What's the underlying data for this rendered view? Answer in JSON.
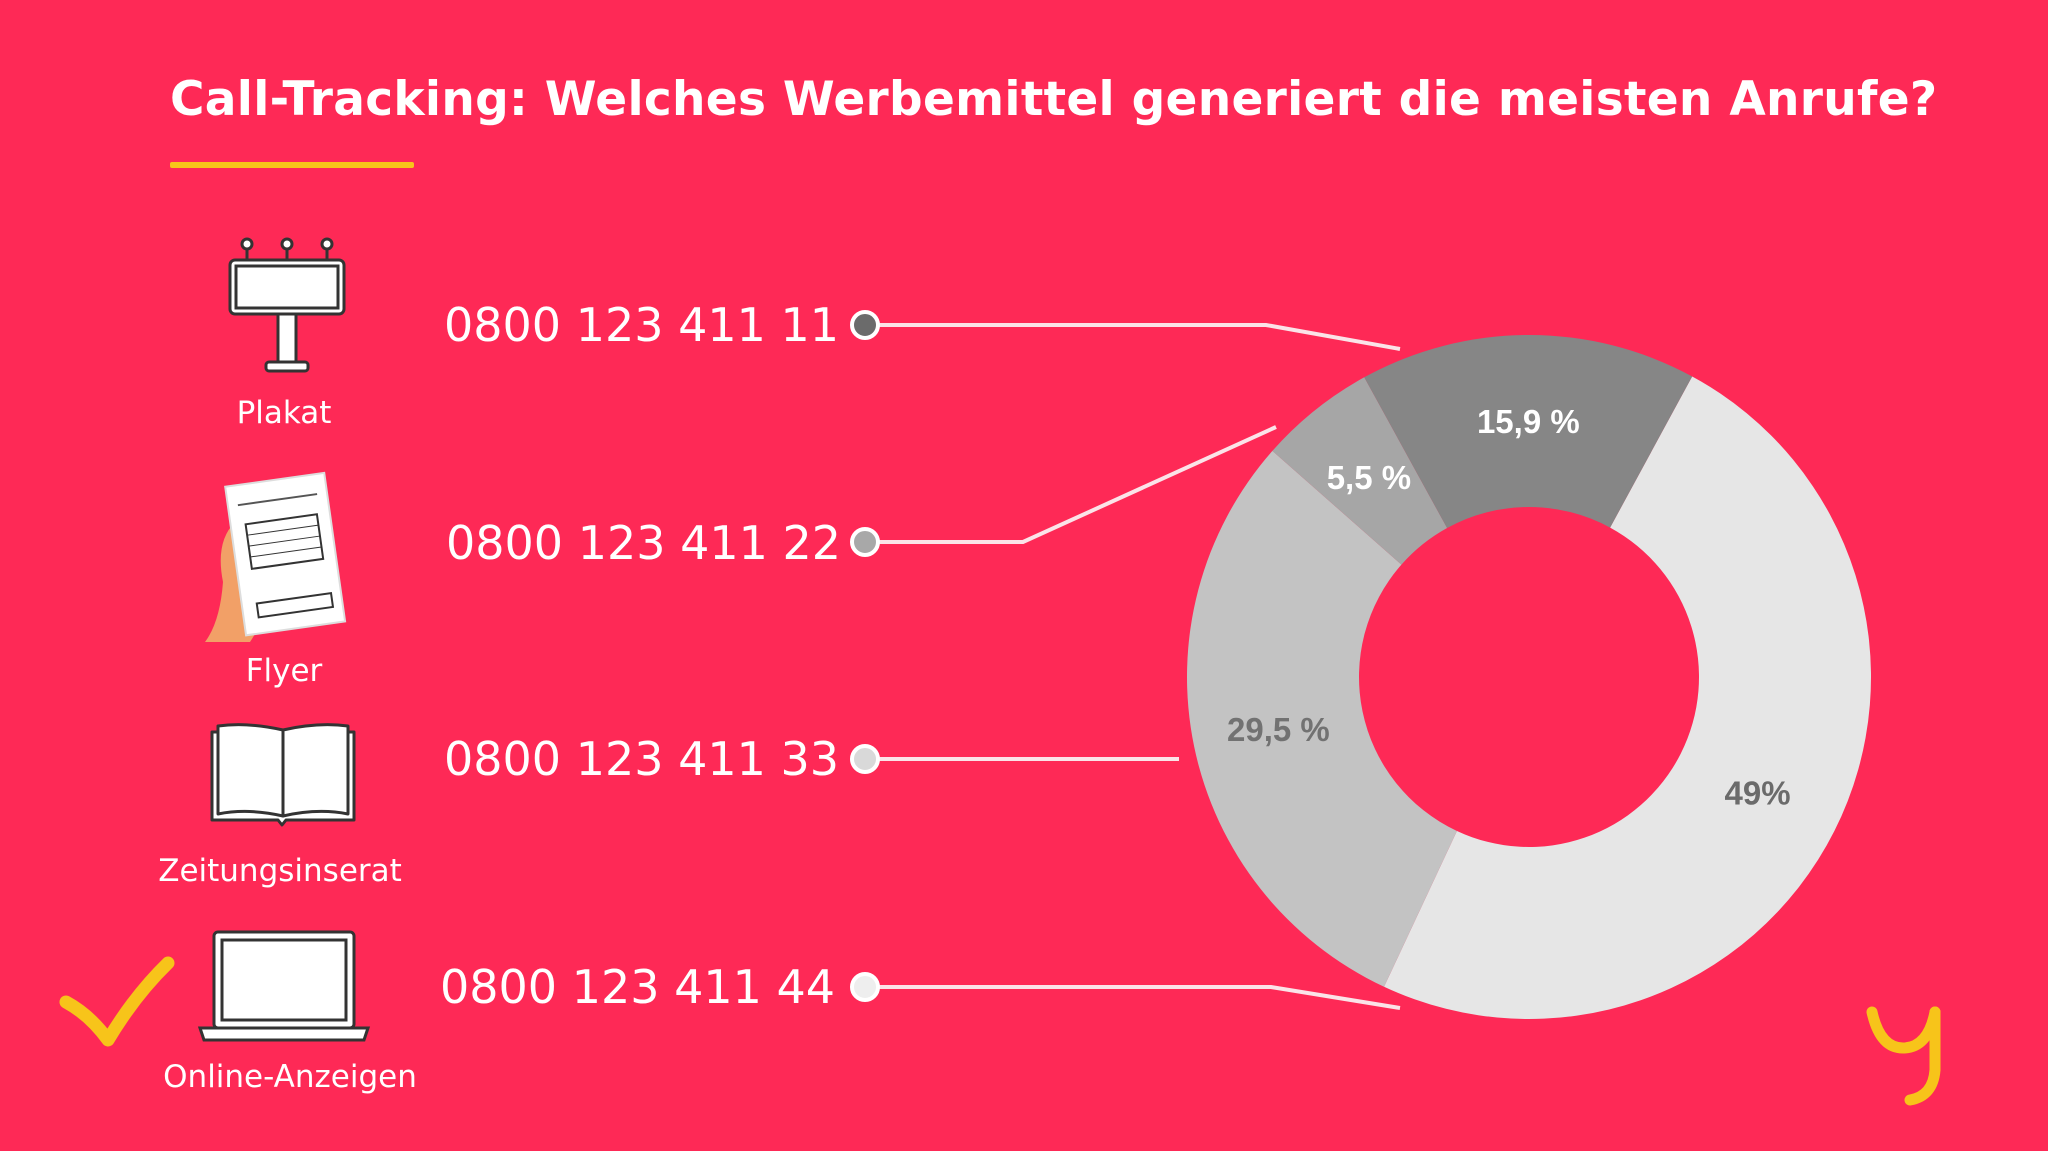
{
  "title": "Call-Tracking: Welches Werbemittel generiert die meisten Anrufe?",
  "colors": {
    "background": "#fe2956",
    "accent": "#f7c41a"
  },
  "rows": [
    {
      "label": "Plakat",
      "phone": "0800 123 411 11",
      "icon": "billboard-icon",
      "dot_color": "#6b6b6b"
    },
    {
      "label": "Flyer",
      "phone": "0800 123 411 22",
      "icon": "flyer-icon",
      "dot_color": "#a8a8a8"
    },
    {
      "label": "Zeitungsinserat",
      "phone": "0800 123 411 33",
      "icon": "newspaper-icon",
      "dot_color": "#d9d9d9"
    },
    {
      "label": "Online-Anzeigen",
      "phone": "0800 123 411 44",
      "icon": "laptop-icon",
      "dot_color": "#eeeeee",
      "checked": true
    }
  ],
  "chart_data": {
    "type": "pie",
    "subtype": "donut",
    "title": "Call-Tracking: Welches Werbemittel generiert die meisten Anrufe?",
    "slices": [
      {
        "name": "Online-Anzeigen",
        "value": 49,
        "label": "49%",
        "color": "#e6e6e6",
        "label_color": "#6b6b6b"
      },
      {
        "name": "Zeitungsinserat",
        "value": 29.5,
        "label": "29,5 %",
        "color": "#c3c3c3",
        "label_color": "#727272"
      },
      {
        "name": "Flyer",
        "value": 5.5,
        "label": "5,5 %",
        "color": "#a6a6a6",
        "label_color": "#ffffff"
      },
      {
        "name": "Plakat",
        "value": 15.9,
        "label": "15,9 %",
        "color": "#868686",
        "label_color": "#ffffff"
      }
    ],
    "start_angle_deg": 28.5
  }
}
